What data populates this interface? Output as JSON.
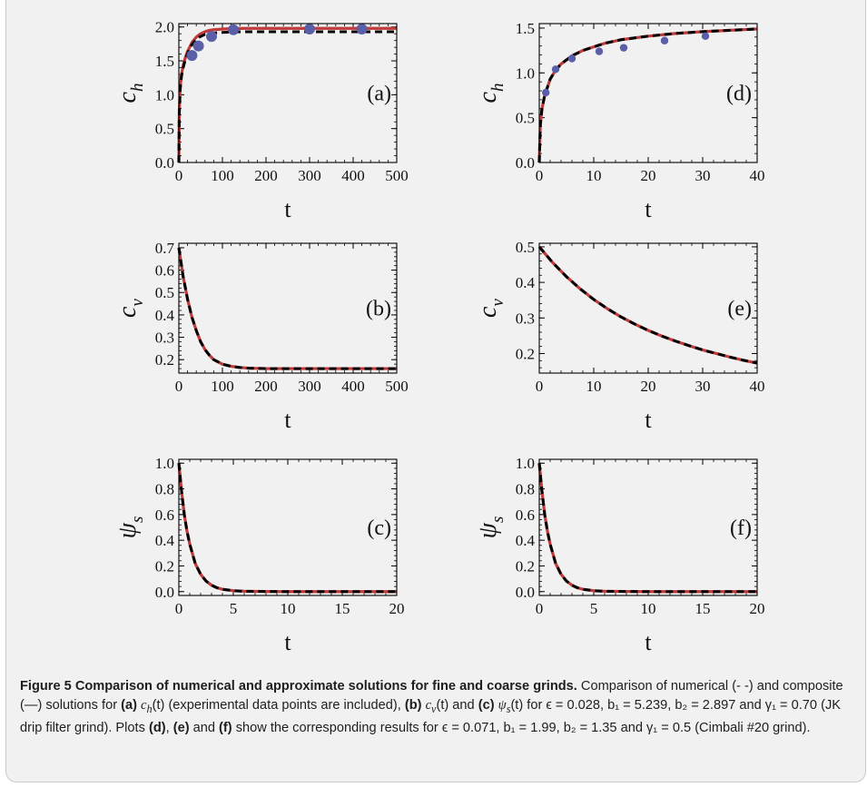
{
  "figure": {
    "panels": [
      {
        "id": "a",
        "label": "(a)",
        "xlabel": "t",
        "ylabel_base": "c",
        "ylabel_sub": "h",
        "xticks": [
          0,
          100,
          200,
          300,
          400,
          500
        ],
        "yticks": [
          "0.0",
          "0.5",
          "1.0",
          "1.5",
          "2.0"
        ]
      },
      {
        "id": "b",
        "label": "(b)",
        "xlabel": "t",
        "ylabel_base": "c",
        "ylabel_sub": "v",
        "xticks": [
          0,
          100,
          200,
          300,
          400,
          500
        ],
        "yticks": [
          "0.2",
          "0.3",
          "0.4",
          "0.5",
          "0.6",
          "0.7"
        ]
      },
      {
        "id": "c",
        "label": "(c)",
        "xlabel": "t",
        "ylabel_base": "ψ",
        "ylabel_sub": "s",
        "xticks": [
          0,
          5,
          10,
          15,
          20
        ],
        "yticks": [
          "0.0",
          "0.2",
          "0.4",
          "0.6",
          "0.8",
          "1.0"
        ]
      },
      {
        "id": "d",
        "label": "(d)",
        "xlabel": "t",
        "ylabel_base": "c",
        "ylabel_sub": "h",
        "xticks": [
          0,
          10,
          20,
          30,
          40
        ],
        "yticks": [
          "0.0",
          "0.5",
          "1.0",
          "1.5"
        ]
      },
      {
        "id": "e",
        "label": "(e)",
        "xlabel": "t",
        "ylabel_base": "c",
        "ylabel_sub": "v",
        "xticks": [
          0,
          10,
          20,
          30,
          40
        ],
        "yticks": [
          "0.2",
          "0.3",
          "0.4",
          "0.5"
        ]
      },
      {
        "id": "f",
        "label": "(f)",
        "xlabel": "t",
        "ylabel_base": "ψ",
        "ylabel_sub": "s",
        "xticks": [
          0,
          5,
          10,
          15,
          20
        ],
        "yticks": [
          "0.0",
          "0.2",
          "0.4",
          "0.6",
          "0.8",
          "1.0"
        ]
      }
    ],
    "caption": {
      "title": "Figure 5  Comparison of numerical and approximate solutions for fine and coarse grinds.",
      "p1": "Comparison of numerical (- -) and composite (—) solutions for",
      "a_lbl": "(a)",
      "a_fn": "c",
      "a_sub": "h",
      "a_arg": "(t)",
      "a_note": "(experimental data points are included),",
      "b_lbl": "(b)",
      "b_fn": "c",
      "b_sub": "v",
      "b_arg": "(t)",
      "and1": "and",
      "c_lbl": "(c)",
      "c_fn": "ψ",
      "c_sub": "s",
      "c_arg": "(t)",
      "params1": "for ϵ = 0.028, b₁ = 5.239, b₂ = 2.897 and γ₁ = 0.70 (JK drip filter grind). Plots",
      "d_lbl": "(d)",
      "comma": ",",
      "e_lbl": "(e)",
      "and2": "and",
      "f_lbl": "(f)",
      "params2": "show the corresponding results for ϵ = 0.071, b₁ = 1.99, b₂ = 1.35 and γ₁ = 0.5 (Cimbali #20 grind)."
    }
  },
  "chart_data": [
    {
      "type": "line",
      "panel": "a",
      "xlim": [
        0,
        500
      ],
      "ylim": [
        0,
        2.05
      ],
      "xlabel": "t",
      "ylabel": "c_h",
      "series": [
        {
          "style": "solid-red",
          "x": [
            0,
            1,
            3,
            6,
            10,
            15,
            20,
            30,
            40,
            50,
            60,
            70,
            80,
            100,
            120,
            150,
            200,
            300,
            400,
            500
          ],
          "values": [
            0,
            0.75,
            1.1,
            1.3,
            1.43,
            1.55,
            1.64,
            1.77,
            1.85,
            1.9,
            1.93,
            1.95,
            1.96,
            1.97,
            1.975,
            1.98,
            1.98,
            1.98,
            1.98,
            1.98
          ]
        },
        {
          "style": "dashed-black",
          "x": [
            0,
            1,
            3,
            6,
            10,
            15,
            20,
            30,
            40,
            50,
            60,
            70,
            80,
            100,
            120,
            150,
            200,
            300,
            400,
            500
          ],
          "values": [
            0,
            0.72,
            1.07,
            1.27,
            1.4,
            1.52,
            1.61,
            1.74,
            1.82,
            1.86,
            1.89,
            1.9,
            1.91,
            1.92,
            1.925,
            1.93,
            1.93,
            1.93,
            1.93,
            1.93
          ]
        },
        {
          "style": "points",
          "x": [
            30,
            45,
            75,
            125,
            300,
            420
          ],
          "values": [
            1.58,
            1.72,
            1.86,
            1.96,
            1.97,
            1.97
          ]
        }
      ]
    },
    {
      "type": "line",
      "panel": "b",
      "xlim": [
        0,
        500
      ],
      "ylim": [
        0.14,
        0.72
      ],
      "xlabel": "t",
      "ylabel": "c_v",
      "series": [
        {
          "style": "solid-red",
          "x": [
            0,
            10,
            20,
            30,
            40,
            50,
            60,
            70,
            80,
            90,
            100,
            120,
            140,
            160,
            200,
            250,
            300,
            400,
            500
          ],
          "values": [
            0.7,
            0.57,
            0.47,
            0.39,
            0.33,
            0.28,
            0.245,
            0.22,
            0.2,
            0.19,
            0.18,
            0.17,
            0.165,
            0.162,
            0.16,
            0.16,
            0.16,
            0.16,
            0.16
          ]
        },
        {
          "style": "dashed-black",
          "x": [
            0,
            10,
            20,
            30,
            40,
            50,
            60,
            70,
            80,
            90,
            100,
            120,
            140,
            160,
            200,
            250,
            300,
            400,
            500
          ],
          "values": [
            0.7,
            0.57,
            0.47,
            0.39,
            0.33,
            0.28,
            0.245,
            0.22,
            0.2,
            0.19,
            0.18,
            0.17,
            0.165,
            0.162,
            0.16,
            0.16,
            0.16,
            0.16,
            0.16
          ]
        }
      ]
    },
    {
      "type": "line",
      "panel": "c",
      "xlim": [
        0,
        20
      ],
      "ylim": [
        -0.03,
        1.03
      ],
      "xlabel": "t",
      "ylabel": "ψ_s",
      "series": [
        {
          "style": "solid-red",
          "x": [
            0,
            0.25,
            0.5,
            0.75,
            1,
            1.5,
            2,
            2.5,
            3,
            3.5,
            4,
            5,
            6,
            8,
            10,
            15,
            20
          ],
          "values": [
            1,
            0.78,
            0.6,
            0.47,
            0.37,
            0.22,
            0.135,
            0.082,
            0.05,
            0.03,
            0.018,
            0.007,
            0.003,
            0.001,
            0,
            0,
            0
          ]
        },
        {
          "style": "dashed-black",
          "x": [
            0,
            0.25,
            0.5,
            0.75,
            1,
            1.5,
            2,
            2.5,
            3,
            3.5,
            4,
            5,
            6,
            8,
            10,
            15,
            20
          ],
          "values": [
            1,
            0.78,
            0.6,
            0.47,
            0.37,
            0.22,
            0.135,
            0.082,
            0.05,
            0.03,
            0.018,
            0.007,
            0.003,
            0.001,
            0,
            0,
            0
          ]
        }
      ]
    },
    {
      "type": "line",
      "panel": "d",
      "xlim": [
        0,
        40
      ],
      "ylim": [
        0,
        1.55
      ],
      "xlabel": "t",
      "ylabel": "c_h",
      "series": [
        {
          "style": "solid-red",
          "x": [
            0,
            0.2,
            0.5,
            1,
            2,
            3,
            4,
            6,
            8,
            10,
            12,
            15,
            20,
            25,
            30,
            35,
            40
          ],
          "values": [
            0,
            0.42,
            0.6,
            0.75,
            0.93,
            1.03,
            1.1,
            1.19,
            1.25,
            1.29,
            1.33,
            1.37,
            1.41,
            1.44,
            1.46,
            1.475,
            1.49
          ]
        },
        {
          "style": "dashed-black",
          "x": [
            0,
            0.2,
            0.5,
            1,
            2,
            3,
            4,
            6,
            8,
            10,
            12,
            15,
            20,
            25,
            30,
            35,
            40
          ],
          "values": [
            0,
            0.42,
            0.6,
            0.75,
            0.93,
            1.03,
            1.1,
            1.19,
            1.25,
            1.29,
            1.33,
            1.37,
            1.41,
            1.44,
            1.46,
            1.475,
            1.49
          ]
        },
        {
          "style": "points",
          "x": [
            1.2,
            3,
            6,
            11,
            15.5,
            23,
            30.5
          ],
          "values": [
            0.78,
            1.04,
            1.16,
            1.24,
            1.28,
            1.36,
            1.41
          ]
        }
      ]
    },
    {
      "type": "line",
      "panel": "e",
      "xlim": [
        0,
        40
      ],
      "ylim": [
        0.145,
        0.51
      ],
      "xlabel": "t",
      "ylabel": "c_v",
      "series": [
        {
          "style": "solid-red",
          "x": [
            0,
            2.5,
            5,
            7.5,
            10,
            12.5,
            15,
            17.5,
            20,
            22.5,
            25,
            27.5,
            30,
            32.5,
            35,
            37.5,
            40
          ],
          "values": [
            0.5,
            0.455,
            0.416,
            0.382,
            0.352,
            0.326,
            0.303,
            0.283,
            0.265,
            0.249,
            0.235,
            0.222,
            0.21,
            0.2,
            0.19,
            0.181,
            0.173
          ]
        },
        {
          "style": "dashed-black",
          "x": [
            0,
            2.5,
            5,
            7.5,
            10,
            12.5,
            15,
            17.5,
            20,
            22.5,
            25,
            27.5,
            30,
            32.5,
            35,
            37.5,
            40
          ],
          "values": [
            0.5,
            0.455,
            0.416,
            0.382,
            0.352,
            0.326,
            0.303,
            0.283,
            0.265,
            0.249,
            0.235,
            0.222,
            0.21,
            0.2,
            0.19,
            0.181,
            0.173
          ]
        }
      ]
    },
    {
      "type": "line",
      "panel": "f",
      "xlim": [
        0,
        20
      ],
      "ylim": [
        -0.03,
        1.03
      ],
      "xlabel": "t",
      "ylabel": "ψ_s",
      "series": [
        {
          "style": "solid-red",
          "x": [
            0,
            0.25,
            0.5,
            0.75,
            1,
            1.5,
            2,
            2.5,
            3,
            3.5,
            4,
            5,
            6,
            8,
            10,
            15,
            20
          ],
          "values": [
            1,
            0.78,
            0.6,
            0.47,
            0.37,
            0.22,
            0.135,
            0.082,
            0.05,
            0.03,
            0.018,
            0.007,
            0.003,
            0.001,
            0,
            0,
            0
          ]
        },
        {
          "style": "dashed-black",
          "x": [
            0,
            0.25,
            0.5,
            0.75,
            1,
            1.5,
            2,
            2.5,
            3,
            3.5,
            4,
            5,
            6,
            8,
            10,
            15,
            20
          ],
          "values": [
            1,
            0.78,
            0.6,
            0.47,
            0.37,
            0.22,
            0.135,
            0.082,
            0.05,
            0.03,
            0.018,
            0.007,
            0.003,
            0.001,
            0,
            0,
            0
          ]
        }
      ]
    }
  ],
  "colors": {
    "solid_line": "#c0393b",
    "dashed_line": "#000000",
    "points": "#5b5fa8",
    "frame_bg": "#f1f1f1"
  }
}
